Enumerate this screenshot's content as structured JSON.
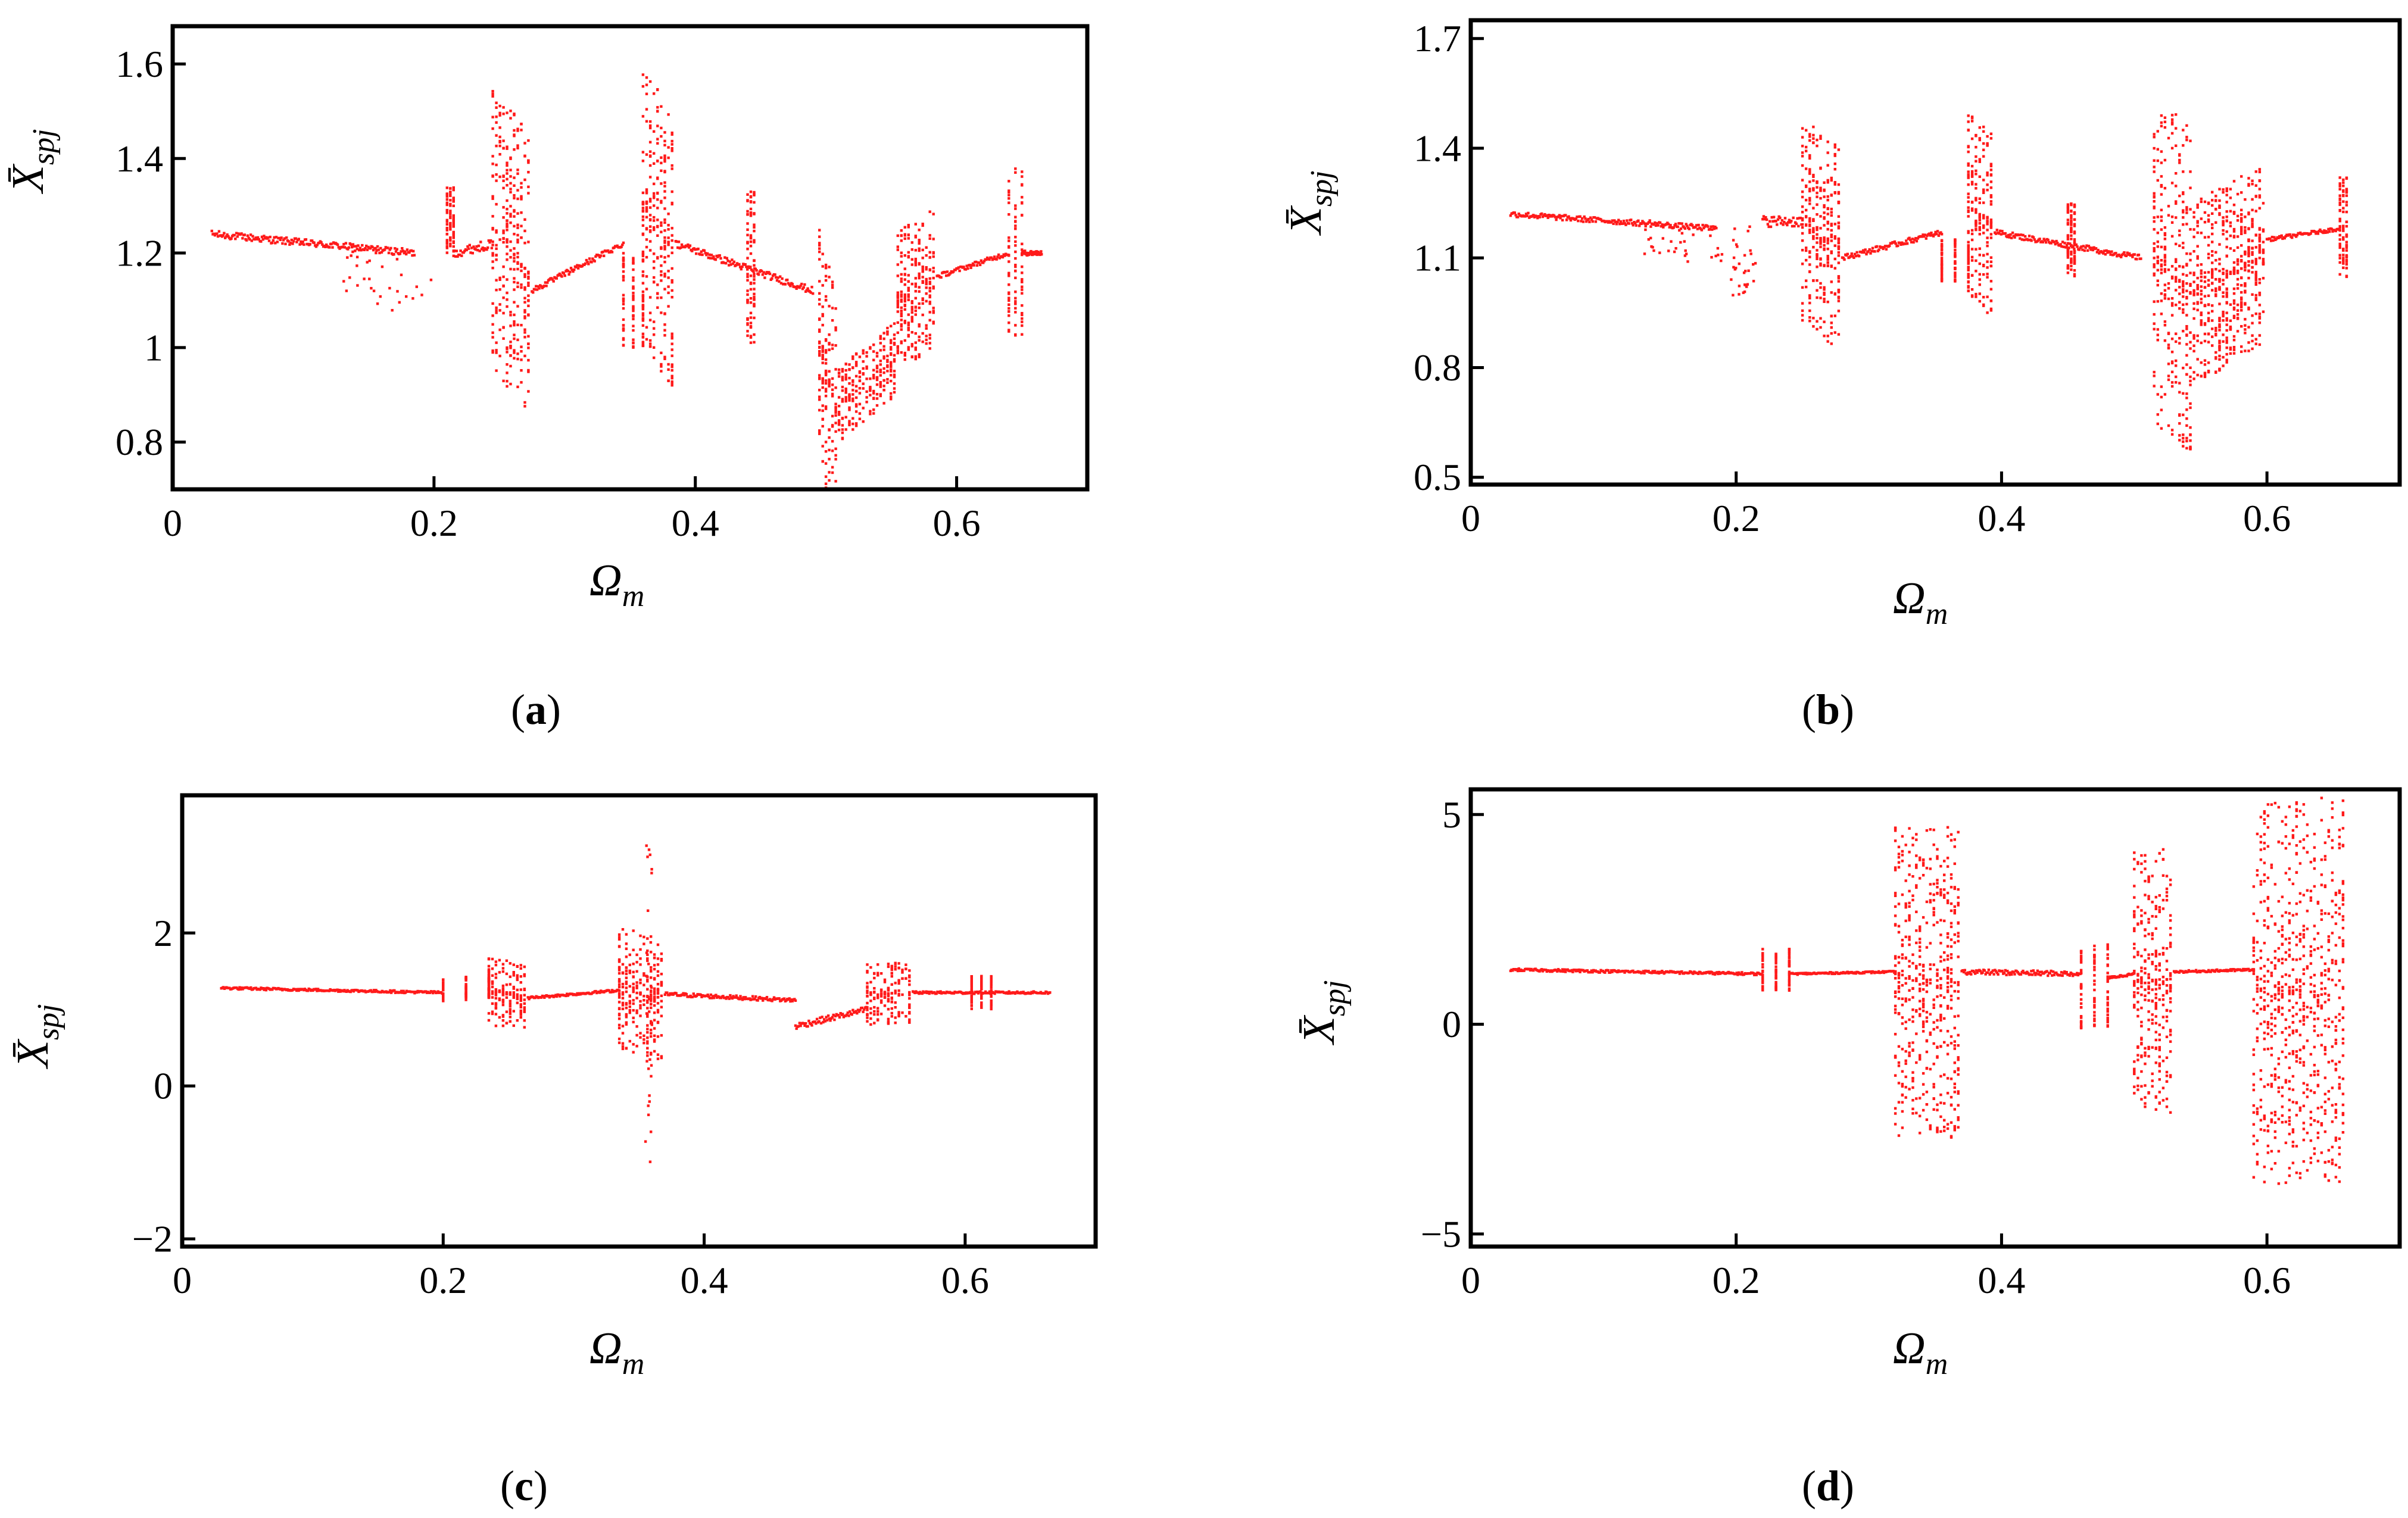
{
  "figure": {
    "colors": {
      "points": "#ff1a1a",
      "axes": "#000000"
    }
  },
  "chart_data": [
    {
      "id": "a",
      "type": "scatter",
      "caption": {
        "open": "(",
        "letter": "a",
        "close": ")"
      },
      "xlabel": {
        "main": "Ω",
        "sub": "m"
      },
      "ylabel": {
        "main": "X̄",
        "sub": "spj"
      },
      "xlim": [
        0,
        0.7
      ],
      "ylim": [
        0.7,
        1.68
      ],
      "xticks": [
        0,
        0.2,
        0.4,
        0.6
      ],
      "xtick_labels": [
        "0",
        "0.2",
        "0.4",
        "0.6"
      ],
      "yticks": [
        0.8,
        1.0,
        1.2,
        1.4,
        1.6
      ],
      "ytick_labels": [
        "0.8",
        "1",
        "1.2",
        "1.4",
        "1.6"
      ],
      "grid": false,
      "segments": [
        {
          "x": [
            0.03,
            0.185
          ],
          "center": [
            1.24,
            1.2
          ],
          "spread": 0.015,
          "kind": "branch"
        },
        {
          "x": [
            0.13,
            0.2
          ],
          "center": [
            1.18,
            1.1
          ],
          "spread": 0.06,
          "kind": "sparse"
        },
        {
          "x": [
            0.21,
            0.215
          ],
          "center": [
            1.27,
            1.27
          ],
          "spread": 0.07,
          "kind": "band"
        },
        {
          "x": [
            0.215,
            0.245
          ],
          "center": [
            1.2,
            1.22
          ],
          "spread": 0.02,
          "kind": "branch"
        },
        {
          "x": [
            0.245,
            0.275
          ],
          "center": [
            1.25,
            1.15
          ],
          "spread": 0.3,
          "kind": "chaos"
        },
        {
          "x": [
            0.275,
            0.345
          ],
          "center": [
            1.12,
            1.22
          ],
          "spread": 0.012,
          "kind": "branch"
        },
        {
          "x": [
            0.345,
            0.36
          ],
          "center": [
            1.1,
            1.1
          ],
          "spread": 0.1,
          "kind": "band"
        },
        {
          "x": [
            0.36,
            0.385
          ],
          "center": [
            1.3,
            1.2
          ],
          "spread": 0.3,
          "kind": "chaos"
        },
        {
          "x": [
            0.385,
            0.49
          ],
          "center": [
            1.22,
            1.12
          ],
          "spread": 0.015,
          "kind": "branch"
        },
        {
          "x": [
            0.44,
            0.445
          ],
          "center": [
            1.17,
            1.17
          ],
          "spread": 0.16,
          "kind": "band"
        },
        {
          "x": [
            0.495,
            0.51
          ],
          "center": [
            1.0,
            0.85
          ],
          "spread": 0.25,
          "kind": "chaos"
        },
        {
          "x": [
            0.51,
            0.555
          ],
          "center": [
            0.88,
            0.98
          ],
          "spread": 0.08,
          "kind": "chaos"
        },
        {
          "x": [
            0.555,
            0.585
          ],
          "center": [
            1.1,
            1.15
          ],
          "spread": 0.15,
          "kind": "chaos"
        },
        {
          "x": [
            0.585,
            0.64
          ],
          "center": [
            1.15,
            1.2
          ],
          "spread": 0.01,
          "kind": "branch"
        },
        {
          "x": [
            0.64,
            0.65
          ],
          "center": [
            1.2,
            1.2
          ],
          "spread": 0.18,
          "kind": "band"
        },
        {
          "x": [
            0.65,
            0.665
          ],
          "center": [
            1.2,
            1.2
          ],
          "spread": 0.01,
          "kind": "branch"
        }
      ]
    },
    {
      "id": "b",
      "type": "scatter",
      "caption": {
        "open": "(",
        "letter": "b",
        "close": ")"
      },
      "xlabel": {
        "main": "Ω",
        "sub": "m"
      },
      "ylabel": {
        "main": "X̄",
        "sub": "spj"
      },
      "xlim": [
        0,
        0.7
      ],
      "ylim": [
        0.48,
        1.75
      ],
      "xticks": [
        0,
        0.2,
        0.4,
        0.6
      ],
      "xtick_labels": [
        "0",
        "0.2",
        "0.4",
        "0.6"
      ],
      "yticks": [
        0.5,
        0.8,
        1.1,
        1.4,
        1.7
      ],
      "ytick_labels": [
        "0.5",
        "0.8",
        "1.1",
        "1.4",
        "1.7"
      ],
      "grid": false,
      "segments": [
        {
          "x": [
            0.03,
            0.185
          ],
          "center": [
            1.22,
            1.18
          ],
          "spread": 0.015,
          "kind": "branch"
        },
        {
          "x": [
            0.13,
            0.19
          ],
          "center": [
            1.16,
            1.12
          ],
          "spread": 0.05,
          "kind": "sparse"
        },
        {
          "x": [
            0.195,
            0.215
          ],
          "center": [
            1.08,
            1.1
          ],
          "spread": 0.1,
          "kind": "sparse"
        },
        {
          "x": [
            0.22,
            0.25
          ],
          "center": [
            1.2,
            1.2
          ],
          "spread": 0.03,
          "kind": "branch"
        },
        {
          "x": [
            0.25,
            0.28
          ],
          "center": [
            1.2,
            1.12
          ],
          "spread": 0.28,
          "kind": "chaos"
        },
        {
          "x": [
            0.28,
            0.355
          ],
          "center": [
            1.1,
            1.17
          ],
          "spread": 0.015,
          "kind": "branch"
        },
        {
          "x": [
            0.355,
            0.375
          ],
          "center": [
            1.09,
            1.09
          ],
          "spread": 0.06,
          "kind": "band"
        },
        {
          "x": [
            0.375,
            0.395
          ],
          "center": [
            1.25,
            1.18
          ],
          "spread": 0.25,
          "kind": "chaos"
        },
        {
          "x": [
            0.395,
            0.505
          ],
          "center": [
            1.17,
            1.1
          ],
          "spread": 0.015,
          "kind": "branch"
        },
        {
          "x": [
            0.45,
            0.455
          ],
          "center": [
            1.15,
            1.15
          ],
          "spread": 0.1,
          "kind": "band"
        },
        {
          "x": [
            0.515,
            0.545
          ],
          "center": [
            1.1,
            1.0
          ],
          "spread": 0.45,
          "kind": "chaos"
        },
        {
          "x": [
            0.545,
            0.6
          ],
          "center": [
            1.0,
            1.12
          ],
          "spread": 0.25,
          "kind": "chaos"
        },
        {
          "x": [
            0.6,
            0.655
          ],
          "center": [
            1.15,
            1.18
          ],
          "spread": 0.01,
          "kind": "branch"
        },
        {
          "x": [
            0.655,
            0.66
          ],
          "center": [
            1.18,
            1.18
          ],
          "spread": 0.14,
          "kind": "band"
        }
      ]
    },
    {
      "id": "c",
      "type": "scatter",
      "caption": {
        "open": "(",
        "letter": "c",
        "close": ")"
      },
      "xlabel": {
        "main": "Ω",
        "sub": "m"
      },
      "ylabel": {
        "main": "X̄",
        "sub": "spj"
      },
      "xlim": [
        0,
        0.7
      ],
      "ylim": [
        -2.1,
        3.8
      ],
      "xticks": [
        0,
        0.2,
        0.4,
        0.6
      ],
      "xtick_labels": [
        "0",
        "0.2",
        "0.4",
        "0.6"
      ],
      "yticks": [
        -2,
        0,
        2
      ],
      "ytick_labels": [
        "−2",
        "0",
        "2"
      ],
      "grid": false,
      "segments": [
        {
          "x": [
            0.03,
            0.2
          ],
          "center": [
            1.28,
            1.22
          ],
          "spread": 0.03,
          "kind": "branch"
        },
        {
          "x": [
            0.2,
            0.235
          ],
          "center": [
            1.25,
            1.3
          ],
          "spread": 0.15,
          "kind": "band"
        },
        {
          "x": [
            0.235,
            0.265
          ],
          "center": [
            1.25,
            1.15
          ],
          "spread": 0.45,
          "kind": "chaos"
        },
        {
          "x": [
            0.265,
            0.335
          ],
          "center": [
            1.15,
            1.25
          ],
          "spread": 0.03,
          "kind": "branch"
        },
        {
          "x": [
            0.335,
            0.37
          ],
          "center": [
            1.3,
            1.1
          ],
          "spread": 0.8,
          "kind": "chaos"
        },
        {
          "x": [
            0.355,
            0.36
          ],
          "center": [
            1.0,
            1.0
          ],
          "spread": 2.2,
          "kind": "sparse"
        },
        {
          "x": [
            0.37,
            0.47
          ],
          "center": [
            1.2,
            1.12
          ],
          "spread": 0.05,
          "kind": "branch"
        },
        {
          "x": [
            0.47,
            0.525
          ],
          "center": [
            0.78,
            1.0
          ],
          "spread": 0.08,
          "kind": "branch"
        },
        {
          "x": [
            0.525,
            0.56
          ],
          "center": [
            1.2,
            1.22
          ],
          "spread": 0.4,
          "kind": "chaos"
        },
        {
          "x": [
            0.56,
            0.665
          ],
          "center": [
            1.22,
            1.22
          ],
          "spread": 0.03,
          "kind": "branch"
        },
        {
          "x": [
            0.605,
            0.62
          ],
          "center": [
            1.22,
            1.22
          ],
          "spread": 0.22,
          "kind": "band"
        }
      ]
    },
    {
      "id": "d",
      "type": "scatter",
      "caption": {
        "open": "(",
        "letter": "d",
        "close": ")"
      },
      "xlabel": {
        "main": "Ω",
        "sub": "m"
      },
      "ylabel": {
        "main": "X̄",
        "sub": "spj"
      },
      "xlim": [
        0,
        0.7
      ],
      "ylim": [
        -5.3,
        5.6
      ],
      "xticks": [
        0,
        0.2,
        0.4,
        0.6
      ],
      "xtick_labels": [
        "0",
        "0.2",
        "0.4",
        "0.6"
      ],
      "yticks": [
        -5,
        0,
        5
      ],
      "ytick_labels": [
        "−5",
        "0",
        "5"
      ],
      "grid": false,
      "segments": [
        {
          "x": [
            0.03,
            0.22
          ],
          "center": [
            1.3,
            1.2
          ],
          "spread": 0.06,
          "kind": "branch"
        },
        {
          "x": [
            0.22,
            0.24
          ],
          "center": [
            1.3,
            1.3
          ],
          "spread": 0.5,
          "kind": "band"
        },
        {
          "x": [
            0.24,
            0.32
          ],
          "center": [
            1.2,
            1.25
          ],
          "spread": 0.04,
          "kind": "branch"
        },
        {
          "x": [
            0.32,
            0.37
          ],
          "center": [
            1.0,
            1.0
          ],
          "spread": 3.7,
          "kind": "chaos"
        },
        {
          "x": [
            0.37,
            0.46
          ],
          "center": [
            1.25,
            1.2
          ],
          "spread": 0.12,
          "kind": "branch"
        },
        {
          "x": [
            0.46,
            0.48
          ],
          "center": [
            0.9,
            0.9
          ],
          "spread": 1.0,
          "kind": "band"
        },
        {
          "x": [
            0.48,
            0.5
          ],
          "center": [
            1.1,
            1.2
          ],
          "spread": 0.05,
          "kind": "branch"
        },
        {
          "x": [
            0.5,
            0.53
          ],
          "center": [
            1.0,
            1.0
          ],
          "spread": 3.2,
          "kind": "chaos"
        },
        {
          "x": [
            0.53,
            0.59
          ],
          "center": [
            1.25,
            1.3
          ],
          "spread": 0.05,
          "kind": "branch"
        },
        {
          "x": [
            0.59,
            0.66
          ],
          "center": [
            0.8,
            0.8
          ],
          "spread": 4.6,
          "kind": "chaos"
        }
      ]
    }
  ]
}
